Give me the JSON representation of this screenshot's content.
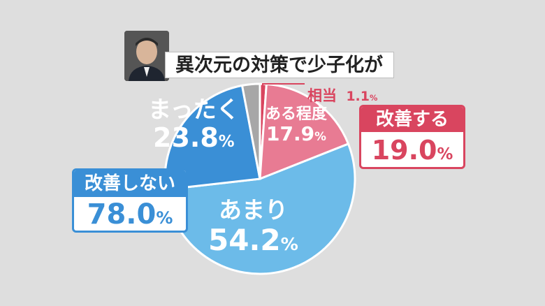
{
  "title": "異次元の対策で少子化が",
  "chart_data": {
    "type": "pie",
    "slices": [
      {
        "label": "相当",
        "value": 1.1,
        "display": "1.1%",
        "color": "#d9455f"
      },
      {
        "label": "ある程度",
        "value": 17.9,
        "display": "17.9%",
        "color": "#e87b93"
      },
      {
        "label": "あまり",
        "value": 54.2,
        "display": "54.2%",
        "color": "#6cbbe9"
      },
      {
        "label": "まったく",
        "value": 23.8,
        "display": "23.8%",
        "color": "#3a8fd6"
      },
      {
        "label": "",
        "value": 3.0,
        "display": "",
        "color": "#a7a7a7"
      }
    ],
    "groups": [
      {
        "label": "改善する",
        "value": "19.0%",
        "color": "#d9455f"
      },
      {
        "label": "改善しない",
        "value": "78.0%",
        "color": "#3a8fd6"
      }
    ]
  }
}
